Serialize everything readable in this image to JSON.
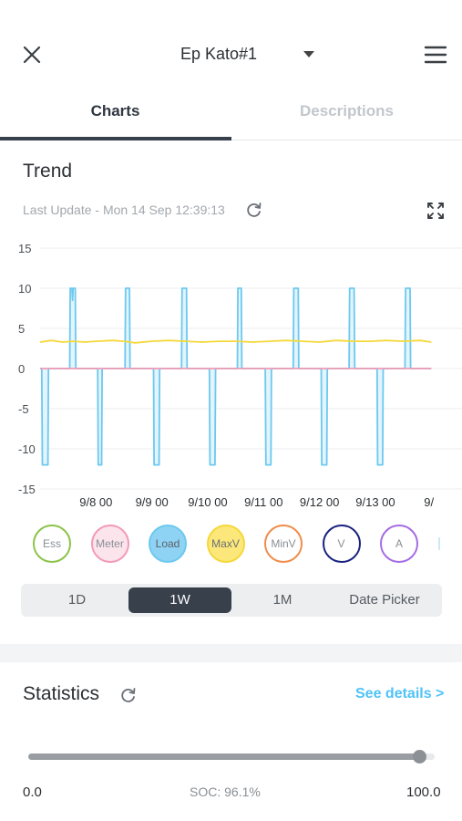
{
  "header": {
    "title": "Ep Kato#1",
    "close_icon": "close-icon",
    "menu_icon": "hamburger-menu-icon",
    "dropdown_icon": "caret-down-icon"
  },
  "tabs": [
    {
      "label": "Charts",
      "active": true
    },
    {
      "label": "Descriptions",
      "active": false
    }
  ],
  "trend": {
    "title": "Trend",
    "last_update": "Last Update - Mon 14 Sep 12:39:13",
    "refresh_icon": "refresh-icon",
    "expand_icon": "fullscreen-icon"
  },
  "chart_data": {
    "type": "line",
    "x_ticks": [
      "9/8 00",
      "9/9 00",
      "9/10 00",
      "9/11 00",
      "9/12 00",
      "9/13 00",
      "9/"
    ],
    "y_ticks": [
      "15",
      "10",
      "5",
      "0",
      "-5",
      "-10",
      "-15"
    ],
    "ylim": [
      -15,
      15
    ],
    "xlim_days": [
      7.0,
      14.55
    ],
    "grid": true,
    "series": [
      {
        "name": "Load",
        "color": "#6cc9ee",
        "fill": "#e3f4fc",
        "points": [
          [
            7.0,
            0
          ],
          [
            7.03,
            0
          ],
          [
            7.04,
            -12
          ],
          [
            7.14,
            -12
          ],
          [
            7.15,
            0
          ],
          [
            7.53,
            0
          ],
          [
            7.54,
            10
          ],
          [
            7.57,
            10
          ],
          [
            7.58,
            8.5
          ],
          [
            7.59,
            10
          ],
          [
            7.63,
            10
          ],
          [
            7.64,
            0
          ],
          [
            8.03,
            0
          ],
          [
            8.04,
            -12
          ],
          [
            8.1,
            -12
          ],
          [
            8.11,
            0
          ],
          [
            8.52,
            0
          ],
          [
            8.53,
            10
          ],
          [
            8.6,
            10
          ],
          [
            8.61,
            0
          ],
          [
            9.03,
            0
          ],
          [
            9.04,
            -12
          ],
          [
            9.13,
            -12
          ],
          [
            9.14,
            0
          ],
          [
            9.53,
            0
          ],
          [
            9.54,
            10
          ],
          [
            9.62,
            10
          ],
          [
            9.63,
            0
          ],
          [
            10.03,
            0
          ],
          [
            10.04,
            -12
          ],
          [
            10.13,
            -12
          ],
          [
            10.14,
            0
          ],
          [
            10.53,
            0
          ],
          [
            10.54,
            10
          ],
          [
            10.6,
            10
          ],
          [
            10.61,
            0
          ],
          [
            11.03,
            0
          ],
          [
            11.04,
            -12
          ],
          [
            11.13,
            -12
          ],
          [
            11.14,
            0
          ],
          [
            11.53,
            0
          ],
          [
            11.54,
            10
          ],
          [
            11.62,
            10
          ],
          [
            11.63,
            0
          ],
          [
            12.03,
            0
          ],
          [
            12.04,
            -12
          ],
          [
            12.13,
            -12
          ],
          [
            12.14,
            0
          ],
          [
            12.53,
            0
          ],
          [
            12.54,
            10
          ],
          [
            12.62,
            10
          ],
          [
            12.63,
            0
          ],
          [
            13.03,
            0
          ],
          [
            13.04,
            -12
          ],
          [
            13.13,
            -12
          ],
          [
            13.14,
            0
          ],
          [
            13.53,
            0
          ],
          [
            13.54,
            10
          ],
          [
            13.62,
            10
          ],
          [
            13.63,
            0
          ],
          [
            14.0,
            0
          ]
        ]
      },
      {
        "name": "MaxV",
        "color": "#f5d83a",
        "points": [
          [
            7.0,
            3.3
          ],
          [
            7.2,
            3.5
          ],
          [
            7.4,
            3.3
          ],
          [
            7.6,
            3.4
          ],
          [
            7.8,
            3.3
          ],
          [
            8.0,
            3.4
          ],
          [
            8.3,
            3.5
          ],
          [
            8.5,
            3.4
          ],
          [
            8.7,
            3.2
          ],
          [
            9.0,
            3.4
          ],
          [
            9.3,
            3.5
          ],
          [
            9.6,
            3.4
          ],
          [
            9.9,
            3.3
          ],
          [
            10.2,
            3.4
          ],
          [
            10.5,
            3.4
          ],
          [
            10.8,
            3.3
          ],
          [
            11.1,
            3.4
          ],
          [
            11.4,
            3.5
          ],
          [
            11.7,
            3.4
          ],
          [
            12.0,
            3.3
          ],
          [
            12.3,
            3.5
          ],
          [
            12.6,
            3.4
          ],
          [
            12.9,
            3.4
          ],
          [
            13.2,
            3.5
          ],
          [
            13.5,
            3.4
          ],
          [
            13.8,
            3.5
          ],
          [
            14.0,
            3.3
          ]
        ]
      },
      {
        "name": "Meter",
        "color": "#f29bb5",
        "points": [
          [
            7.0,
            0
          ],
          [
            14.0,
            0
          ]
        ]
      }
    ]
  },
  "legend": [
    {
      "label": "Ess",
      "color": "#8bc34a",
      "fill": "#ffffff",
      "text": "#8a8f94"
    },
    {
      "label": "Meter",
      "color": "#f29bb5",
      "fill": "#fce4ec",
      "text": "#8a8f94"
    },
    {
      "label": "Load",
      "color": "#6cc9ee",
      "fill": "#8fd3f4",
      "text": "#5a6066"
    },
    {
      "label": "MaxV",
      "color": "#f5d83a",
      "fill": "#fbe77a",
      "text": "#6a6f74"
    },
    {
      "label": "MinV",
      "color": "#f08c4a",
      "fill": "#ffffff",
      "text": "#8a8f94"
    },
    {
      "label": "V",
      "color": "#1a237e",
      "fill": "#ffffff",
      "text": "#8a8f94"
    },
    {
      "label": "A",
      "color": "#a56de2",
      "fill": "#ffffff",
      "text": "#8a8f94"
    }
  ],
  "range": {
    "options": [
      "1D",
      "1W",
      "1M",
      "Date Picker"
    ],
    "selected": "1W"
  },
  "statistics": {
    "title": "Statistics",
    "refresh_icon": "refresh-icon",
    "see_details": "See details >",
    "slider": {
      "min_label": "0.0",
      "max_label": "100.0",
      "center_label": "SOC: 96.1%",
      "value": 96.1
    }
  },
  "colors": {
    "accent": "#4fc3f7",
    "dark": "#37404b",
    "muted": "#a3a8ad"
  }
}
